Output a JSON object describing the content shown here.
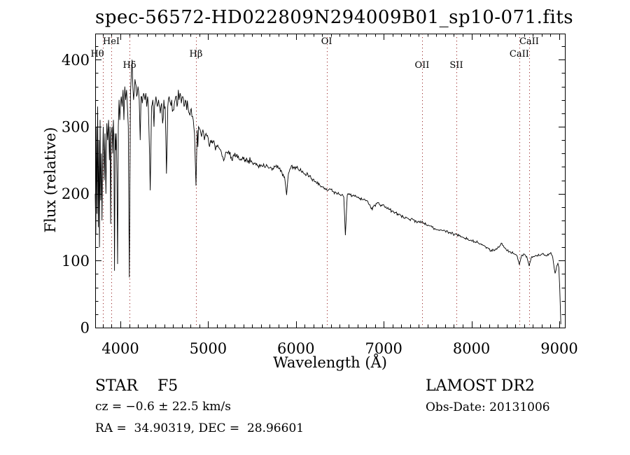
{
  "figure": {
    "title": "spec-56572-HD022809N294009B01_sp10-071.fits",
    "footer": {
      "class_label": "STAR    F5",
      "survey": "LAMOST DR2",
      "cz": "cz = −0.6 ± 22.5 km/s",
      "obs_date": "Obs-Date: 20131006",
      "ra_dec": "RA =  34.90319, DEC =  28.96601"
    }
  },
  "chart_data": {
    "type": "line",
    "title": "spec-56572-HD022809N294009B01_sp10-071.fits",
    "xlabel": "Wavelength (Å)",
    "ylabel": "Flux (relative)",
    "xlim": [
      3713,
      9064
    ],
    "ylim": [
      0,
      439
    ],
    "grid": false,
    "x_major_ticks": [
      4000,
      5000,
      6000,
      7000,
      8000,
      9000
    ],
    "x_minor_step": 100,
    "y_major_ticks": [
      0,
      100,
      200,
      300,
      400
    ],
    "y_minor_step": 20,
    "line_color": "#000000",
    "annotation_line_color": "#9e3232",
    "spectral_lines": [
      {
        "label": "Hθ",
        "wavelength": 3801,
        "row": 2,
        "dx": -8
      },
      {
        "label": "HeI",
        "wavelength": 3896,
        "row": 1,
        "dx": 0
      },
      {
        "label": "Hδ",
        "wavelength": 4104,
        "row": 3,
        "dx": 0
      },
      {
        "label": "Hβ",
        "wavelength": 4861,
        "row": 2,
        "dx": 0
      },
      {
        "label": "OI",
        "wavelength": 6350,
        "row": 1,
        "dx": 0
      },
      {
        "label": "OII",
        "wavelength": 7437,
        "row": 3,
        "dx": 0
      },
      {
        "label": "SII",
        "wavelength": 7828,
        "row": 3,
        "dx": 0
      },
      {
        "label": "CaII",
        "wavelength": 8545,
        "row": 2,
        "dx": 0
      },
      {
        "label": "CaII",
        "wavelength": 8657,
        "row": 1,
        "dx": 0
      }
    ],
    "series": [
      {
        "name": "spectrum",
        "points": [
          [
            3713,
            200
          ],
          [
            3720,
            140
          ],
          [
            3727,
            300
          ],
          [
            3734,
            170
          ],
          [
            3741,
            330
          ],
          [
            3748,
            150
          ],
          [
            3755,
            280
          ],
          [
            3762,
            120
          ],
          [
            3769,
            310
          ],
          [
            3776,
            190
          ],
          [
            3783,
            260
          ],
          [
            3790,
            160
          ],
          [
            3797,
            240
          ],
          [
            3805,
            300
          ],
          [
            3815,
            220
          ],
          [
            3825,
            290
          ],
          [
            3835,
            200
          ],
          [
            3845,
            305
          ],
          [
            3855,
            280
          ],
          [
            3865,
            310
          ],
          [
            3875,
            250
          ],
          [
            3882,
            300
          ],
          [
            3889,
            155
          ],
          [
            3896,
            290
          ],
          [
            3905,
            300
          ],
          [
            3912,
            260
          ],
          [
            3920,
            310
          ],
          [
            3926,
            280
          ],
          [
            3933,
            85
          ],
          [
            3940,
            290
          ],
          [
            3947,
            265
          ],
          [
            3954,
            290
          ],
          [
            3961,
            220
          ],
          [
            3968,
            95
          ],
          [
            3976,
            300
          ],
          [
            3985,
            340
          ],
          [
            3993,
            310
          ],
          [
            4000,
            330
          ],
          [
            4010,
            345
          ],
          [
            4020,
            330
          ],
          [
            4030,
            355
          ],
          [
            4040,
            310
          ],
          [
            4050,
            360
          ],
          [
            4060,
            340
          ],
          [
            4070,
            355
          ],
          [
            4080,
            330
          ],
          [
            4090,
            300
          ],
          [
            4102,
            75
          ],
          [
            4115,
            350
          ],
          [
            4125,
            380
          ],
          [
            4133,
            400
          ],
          [
            4142,
            360
          ],
          [
            4150,
            340
          ],
          [
            4160,
            355
          ],
          [
            4172,
            365
          ],
          [
            4185,
            345
          ],
          [
            4200,
            360
          ],
          [
            4215,
            340
          ],
          [
            4226,
            280
          ],
          [
            4235,
            345
          ],
          [
            4250,
            335
          ],
          [
            4265,
            350
          ],
          [
            4280,
            340
          ],
          [
            4290,
            350
          ],
          [
            4300,
            330
          ],
          [
            4310,
            345
          ],
          [
            4325,
            300
          ],
          [
            4340,
            205
          ],
          [
            4355,
            330
          ],
          [
            4370,
            340
          ],
          [
            4383,
            300
          ],
          [
            4395,
            335
          ],
          [
            4405,
            345
          ],
          [
            4420,
            330
          ],
          [
            4435,
            340
          ],
          [
            4455,
            320
          ],
          [
            4470,
            335
          ],
          [
            4481,
            305
          ],
          [
            4495,
            340
          ],
          [
            4510,
            330
          ],
          [
            4525,
            230
          ],
          [
            4540,
            330
          ],
          [
            4555,
            345
          ],
          [
            4570,
            335
          ],
          [
            4585,
            340
          ],
          [
            4600,
            325
          ],
          [
            4615,
            335
          ],
          [
            4630,
            345
          ],
          [
            4645,
            330
          ],
          [
            4660,
            355
          ],
          [
            4668,
            340
          ],
          [
            4680,
            350
          ],
          [
            4695,
            335
          ],
          [
            4710,
            345
          ],
          [
            4725,
            330
          ],
          [
            4740,
            340
          ],
          [
            4755,
            325
          ],
          [
            4770,
            330
          ],
          [
            4785,
            320
          ],
          [
            4800,
            325
          ],
          [
            4815,
            315
          ],
          [
            4830,
            310
          ],
          [
            4845,
            290
          ],
          [
            4861,
            212
          ],
          [
            4875,
            295
          ],
          [
            4890,
            300
          ],
          [
            4910,
            295
          ],
          [
            4925,
            285
          ],
          [
            4940,
            295
          ],
          [
            4957,
            280
          ],
          [
            4975,
            290
          ],
          [
            5000,
            283
          ],
          [
            5015,
            270
          ],
          [
            5030,
            280
          ],
          [
            5050,
            275
          ],
          [
            5075,
            272
          ],
          [
            5100,
            270
          ],
          [
            5125,
            268
          ],
          [
            5150,
            262
          ],
          [
            5167,
            255
          ],
          [
            5185,
            252
          ],
          [
            5200,
            262
          ],
          [
            5225,
            260
          ],
          [
            5250,
            262
          ],
          [
            5270,
            250
          ],
          [
            5290,
            258
          ],
          [
            5320,
            256
          ],
          [
            5350,
            252
          ],
          [
            5380,
            250
          ],
          [
            5400,
            252
          ],
          [
            5430,
            248
          ],
          [
            5460,
            250
          ],
          [
            5499,
            247
          ],
          [
            5530,
            245
          ],
          [
            5560,
            242
          ],
          [
            5600,
            243
          ],
          [
            5640,
            240
          ],
          [
            5680,
            240
          ],
          [
            5720,
            238
          ],
          [
            5760,
            240
          ],
          [
            5800,
            238
          ],
          [
            5840,
            232
          ],
          [
            5870,
            225
          ],
          [
            5893,
            198
          ],
          [
            5915,
            230
          ],
          [
            5940,
            238
          ],
          [
            5970,
            240
          ],
          [
            6000,
            240
          ],
          [
            6030,
            236
          ],
          [
            6060,
            233
          ],
          [
            6090,
            230
          ],
          [
            6120,
            228
          ],
          [
            6150,
            225
          ],
          [
            6180,
            222
          ],
          [
            6210,
            218
          ],
          [
            6240,
            215
          ],
          [
            6270,
            213
          ],
          [
            6300,
            210
          ],
          [
            6330,
            208
          ],
          [
            6363,
            205
          ],
          [
            6400,
            206
          ],
          [
            6430,
            203
          ],
          [
            6460,
            201
          ],
          [
            6490,
            199
          ],
          [
            6520,
            198
          ],
          [
            6545,
            195
          ],
          [
            6563,
            138
          ],
          [
            6585,
            198
          ],
          [
            6610,
            200
          ],
          [
            6640,
            197
          ],
          [
            6670,
            196
          ],
          [
            6700,
            195
          ],
          [
            6730,
            193
          ],
          [
            6760,
            191
          ],
          [
            6790,
            190
          ],
          [
            6820,
            188
          ],
          [
            6850,
            180
          ],
          [
            6870,
            176
          ],
          [
            6890,
            183
          ],
          [
            6920,
            185
          ],
          [
            6950,
            184
          ],
          [
            6980,
            182
          ],
          [
            7010,
            180
          ],
          [
            7040,
            178
          ],
          [
            7070,
            176
          ],
          [
            7100,
            174
          ],
          [
            7130,
            172
          ],
          [
            7160,
            170
          ],
          [
            7190,
            168
          ],
          [
            7220,
            166
          ],
          [
            7250,
            165
          ],
          [
            7280,
            163
          ],
          [
            7310,
            162
          ],
          [
            7340,
            161
          ],
          [
            7370,
            159
          ],
          [
            7400,
            158
          ],
          [
            7430,
            157
          ],
          [
            7460,
            156
          ],
          [
            7490,
            153
          ],
          [
            7520,
            152
          ],
          [
            7550,
            150
          ],
          [
            7580,
            148
          ],
          [
            7610,
            146
          ],
          [
            7640,
            146
          ],
          [
            7670,
            145
          ],
          [
            7700,
            144
          ],
          [
            7730,
            143
          ],
          [
            7760,
            142
          ],
          [
            7790,
            140
          ],
          [
            7828,
            139
          ],
          [
            7860,
            137
          ],
          [
            7890,
            135
          ],
          [
            7920,
            133
          ],
          [
            7950,
            132
          ],
          [
            7980,
            130
          ],
          [
            8010,
            129
          ],
          [
            8040,
            128
          ],
          [
            8070,
            127
          ],
          [
            8100,
            125
          ],
          [
            8130,
            123
          ],
          [
            8160,
            121
          ],
          [
            8190,
            119
          ],
          [
            8220,
            114
          ],
          [
            8250,
            116
          ],
          [
            8280,
            118
          ],
          [
            8310,
            120
          ],
          [
            8346,
            126
          ],
          [
            8370,
            120
          ],
          [
            8400,
            115
          ],
          [
            8430,
            113
          ],
          [
            8460,
            112
          ],
          [
            8490,
            110
          ],
          [
            8520,
            107
          ],
          [
            8545,
            94
          ],
          [
            8570,
            108
          ],
          [
            8600,
            110
          ],
          [
            8630,
            106
          ],
          [
            8657,
            92
          ],
          [
            8680,
            104
          ],
          [
            8710,
            106
          ],
          [
            8740,
            107
          ],
          [
            8770,
            108
          ],
          [
            8800,
            110
          ],
          [
            8830,
            108
          ],
          [
            8860,
            107
          ],
          [
            8890,
            110
          ],
          [
            8904,
            112
          ],
          [
            8925,
            105
          ],
          [
            8952,
            81
          ],
          [
            8970,
            92
          ],
          [
            8984,
            96
          ],
          [
            8995,
            90
          ],
          [
            9005,
            60
          ],
          [
            9012,
            30
          ],
          [
            9018,
            5
          ]
        ]
      }
    ],
    "noise_model": {
      "seed": 20131006,
      "sample_step_angstrom": 8,
      "downward_spike_probability": 0.05,
      "downward_spike_scale": 2.2,
      "regions": [
        {
          "from": 3713,
          "to": 3790,
          "amp": 60
        },
        {
          "from": 3790,
          "to": 4000,
          "amp": 22
        },
        {
          "from": 4000,
          "to": 4450,
          "amp": 19
        },
        {
          "from": 4450,
          "to": 4900,
          "amp": 13
        },
        {
          "from": 4900,
          "to": 5500,
          "amp": 7
        },
        {
          "from": 5500,
          "to": 6300,
          "amp": 4.5
        },
        {
          "from": 6300,
          "to": 7200,
          "amp": 3.2
        },
        {
          "from": 7200,
          "to": 8200,
          "amp": 2.8
        },
        {
          "from": 8200,
          "to": 9020,
          "amp": 2.4
        }
      ]
    }
  }
}
